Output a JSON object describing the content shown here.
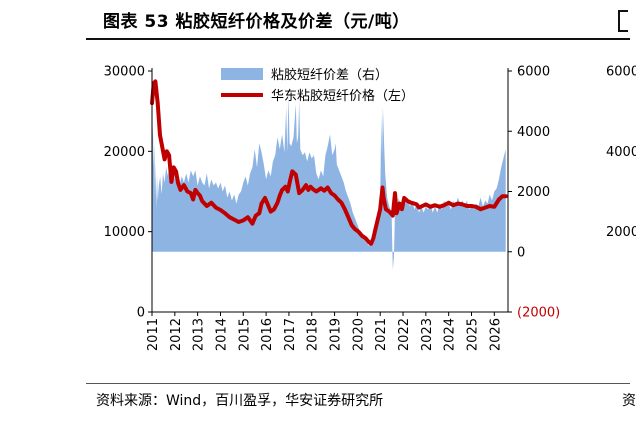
{
  "title": "图表 53 粘胶短纤价格及价差（元/吨）",
  "source": "资料来源：Wind，百川盈孚，华安证券研究所",
  "chart_data": {
    "type": "line+area",
    "colors": {
      "spread_area": "#8eb4e3",
      "price_line": "#c00000",
      "negative_tick": "#c00000"
    },
    "legend": [
      "粘胶短纤价差（右）",
      "华东粘胶短纤价格（左）"
    ],
    "legend_placement": "top-center",
    "x_ticks": [
      "2011",
      "2012",
      "2013",
      "2014",
      "2015",
      "2016",
      "2017",
      "2018",
      "2019",
      "2020",
      "2021",
      "2022",
      "2023",
      "2024",
      "2025",
      "2026"
    ],
    "xlim": [
      2011.0,
      2026.6
    ],
    "left_axis": {
      "ylim": [
        0,
        30000
      ],
      "ticks": [
        "0",
        "10000",
        "20000",
        "30000"
      ]
    },
    "right_axis": {
      "ylim": [
        -2000,
        6000
      ],
      "ticks": [
        "(2000)",
        "0",
        "2000",
        "4000",
        "6000"
      ]
    },
    "grid": false,
    "series": [
      {
        "name": "华东粘胶短纤价格（左）",
        "axis": "left",
        "style": "line",
        "points": [
          [
            2011.0,
            26000
          ],
          [
            2011.08,
            28500
          ],
          [
            2011.15,
            28700
          ],
          [
            2011.25,
            26000
          ],
          [
            2011.35,
            22000
          ],
          [
            2011.45,
            20500
          ],
          [
            2011.55,
            19000
          ],
          [
            2011.65,
            20000
          ],
          [
            2011.75,
            19500
          ],
          [
            2011.85,
            16200
          ],
          [
            2011.95,
            18000
          ],
          [
            2012.05,
            17500
          ],
          [
            2012.15,
            16000
          ],
          [
            2012.25,
            15200
          ],
          [
            2012.4,
            15800
          ],
          [
            2012.55,
            15000
          ],
          [
            2012.7,
            14800
          ],
          [
            2012.8,
            14000
          ],
          [
            2012.9,
            15200
          ],
          [
            2013.0,
            14800
          ],
          [
            2013.1,
            14500
          ],
          [
            2013.2,
            13800
          ],
          [
            2013.4,
            13200
          ],
          [
            2013.6,
            13600
          ],
          [
            2013.8,
            13000
          ],
          [
            2014.0,
            12700
          ],
          [
            2014.2,
            12300
          ],
          [
            2014.4,
            11800
          ],
          [
            2014.6,
            11500
          ],
          [
            2014.8,
            11200
          ],
          [
            2015.0,
            11400
          ],
          [
            2015.2,
            11800
          ],
          [
            2015.4,
            11000
          ],
          [
            2015.55,
            12000
          ],
          [
            2015.7,
            12300
          ],
          [
            2015.8,
            13500
          ],
          [
            2015.95,
            14200
          ],
          [
            2016.1,
            13200
          ],
          [
            2016.2,
            12500
          ],
          [
            2016.35,
            12800
          ],
          [
            2016.5,
            13600
          ],
          [
            2016.6,
            14500
          ],
          [
            2016.7,
            15200
          ],
          [
            2016.85,
            15600
          ],
          [
            2016.95,
            15000
          ],
          [
            2017.05,
            16400
          ],
          [
            2017.15,
            17500
          ],
          [
            2017.3,
            17100
          ],
          [
            2017.45,
            14800
          ],
          [
            2017.6,
            15200
          ],
          [
            2017.75,
            15800
          ],
          [
            2017.85,
            15200
          ],
          [
            2017.95,
            15600
          ],
          [
            2018.05,
            15300
          ],
          [
            2018.2,
            15000
          ],
          [
            2018.4,
            15400
          ],
          [
            2018.55,
            15100
          ],
          [
            2018.7,
            15500
          ],
          [
            2018.85,
            14800
          ],
          [
            2019.0,
            14500
          ],
          [
            2019.15,
            14000
          ],
          [
            2019.3,
            13600
          ],
          [
            2019.45,
            12800
          ],
          [
            2019.6,
            11800
          ],
          [
            2019.75,
            10800
          ],
          [
            2019.9,
            10300
          ],
          [
            2020.05,
            10000
          ],
          [
            2020.2,
            9500
          ],
          [
            2020.35,
            9200
          ],
          [
            2020.5,
            8700
          ],
          [
            2020.6,
            8500
          ],
          [
            2020.7,
            9200
          ],
          [
            2020.8,
            10400
          ],
          [
            2020.9,
            11600
          ],
          [
            2021.0,
            12800
          ],
          [
            2021.1,
            15500
          ],
          [
            2021.15,
            14200
          ],
          [
            2021.25,
            12800
          ],
          [
            2021.4,
            12500
          ],
          [
            2021.55,
            12000
          ],
          [
            2021.65,
            14800
          ],
          [
            2021.72,
            12300
          ],
          [
            2021.85,
            13500
          ],
          [
            2021.95,
            12800
          ],
          [
            2022.05,
            14200
          ],
          [
            2022.2,
            13800
          ],
          [
            2022.35,
            13600
          ],
          [
            2022.5,
            13500
          ],
          [
            2022.6,
            13400
          ],
          [
            2022.7,
            13000
          ],
          [
            2022.85,
            13200
          ],
          [
            2023.0,
            13400
          ],
          [
            2023.2,
            13100
          ],
          [
            2023.4,
            13300
          ],
          [
            2023.6,
            13100
          ],
          [
            2023.8,
            13300
          ],
          [
            2024.0,
            13600
          ],
          [
            2024.2,
            13300
          ],
          [
            2024.4,
            13500
          ],
          [
            2024.6,
            13400
          ],
          [
            2024.8,
            13200
          ],
          [
            2025.0,
            13200
          ],
          [
            2025.2,
            13100
          ],
          [
            2025.4,
            12800
          ],
          [
            2025.6,
            13000
          ],
          [
            2025.8,
            13200
          ],
          [
            2026.0,
            13100
          ],
          [
            2026.2,
            14000
          ],
          [
            2026.35,
            14400
          ],
          [
            2026.5,
            14400
          ]
        ]
      },
      {
        "name": "粘胶短纤价差（右）",
        "axis": "right",
        "style": "area",
        "points": [
          [
            2011.0,
            3200
          ],
          [
            2011.04,
            4200
          ],
          [
            2011.07,
            2800
          ],
          [
            2011.1,
            3600
          ],
          [
            2011.13,
            1800
          ],
          [
            2011.16,
            3000
          ],
          [
            2011.19,
            1400
          ],
          [
            2011.22,
            2600
          ],
          [
            2011.25,
            1700
          ],
          [
            2011.3,
            2200
          ],
          [
            2011.36,
            2500
          ],
          [
            2011.42,
            1900
          ],
          [
            2011.48,
            2600
          ],
          [
            2011.55,
            2300
          ],
          [
            2011.62,
            2800
          ],
          [
            2011.7,
            2500
          ],
          [
            2011.78,
            3100
          ],
          [
            2011.85,
            2600
          ],
          [
            2011.92,
            2900
          ],
          [
            2012.0,
            2400
          ],
          [
            2012.1,
            2600
          ],
          [
            2012.2,
            2200
          ],
          [
            2012.3,
            2500
          ],
          [
            2012.4,
            2300
          ],
          [
            2012.5,
            2600
          ],
          [
            2012.6,
            2300
          ],
          [
            2012.7,
            2700
          ],
          [
            2012.8,
            2500
          ],
          [
            2012.9,
            2700
          ],
          [
            2013.0,
            2200
          ],
          [
            2013.1,
            2500
          ],
          [
            2013.2,
            2300
          ],
          [
            2013.3,
            2200
          ],
          [
            2013.4,
            2600
          ],
          [
            2013.5,
            2100
          ],
          [
            2013.6,
            2400
          ],
          [
            2013.7,
            2200
          ],
          [
            2013.8,
            2300
          ],
          [
            2013.9,
            2100
          ],
          [
            2014.0,
            2300
          ],
          [
            2014.1,
            2000
          ],
          [
            2014.2,
            2200
          ],
          [
            2014.3,
            1800
          ],
          [
            2014.4,
            2000
          ],
          [
            2014.5,
            1700
          ],
          [
            2014.6,
            1900
          ],
          [
            2014.7,
            1600
          ],
          [
            2014.8,
            1900
          ],
          [
            2014.9,
            2000
          ],
          [
            2015.0,
            2300
          ],
          [
            2015.1,
            2500
          ],
          [
            2015.2,
            2200
          ],
          [
            2015.3,
            2600
          ],
          [
            2015.4,
            2800
          ],
          [
            2015.5,
            3400
          ],
          [
            2015.6,
            2800
          ],
          [
            2015.7,
            3600
          ],
          [
            2015.8,
            3300
          ],
          [
            2015.9,
            2900
          ],
          [
            2016.0,
            2400
          ],
          [
            2016.1,
            2700
          ],
          [
            2016.2,
            2500
          ],
          [
            2016.3,
            3000
          ],
          [
            2016.4,
            3200
          ],
          [
            2016.5,
            3800
          ],
          [
            2016.6,
            3400
          ],
          [
            2016.7,
            3900
          ],
          [
            2016.8,
            3300
          ],
          [
            2016.88,
            4800
          ],
          [
            2016.93,
            3300
          ],
          [
            2016.98,
            5200
          ],
          [
            2017.03,
            3600
          ],
          [
            2017.1,
            3500
          ],
          [
            2017.2,
            3800
          ],
          [
            2017.3,
            4900
          ],
          [
            2017.35,
            3600
          ],
          [
            2017.4,
            3800
          ],
          [
            2017.45,
            5000
          ],
          [
            2017.5,
            3400
          ],
          [
            2017.6,
            3200
          ],
          [
            2017.7,
            3300
          ],
          [
            2017.8,
            3000
          ],
          [
            2017.9,
            3300
          ],
          [
            2018.0,
            3100
          ],
          [
            2018.1,
            3200
          ],
          [
            2018.2,
            2600
          ],
          [
            2018.3,
            2400
          ],
          [
            2018.4,
            2700
          ],
          [
            2018.5,
            2500
          ],
          [
            2018.6,
            3200
          ],
          [
            2018.7,
            3500
          ],
          [
            2018.8,
            3900
          ],
          [
            2018.9,
            3200
          ],
          [
            2019.0,
            3400
          ],
          [
            2019.05,
            3600
          ],
          [
            2019.1,
            2900
          ],
          [
            2019.2,
            2700
          ],
          [
            2019.3,
            2500
          ],
          [
            2019.4,
            2300
          ],
          [
            2019.5,
            2000
          ],
          [
            2019.6,
            1800
          ],
          [
            2019.7,
            1600
          ],
          [
            2019.8,
            1300
          ],
          [
            2019.9,
            1100
          ],
          [
            2020.0,
            900
          ],
          [
            2020.1,
            700
          ],
          [
            2020.2,
            500
          ],
          [
            2020.3,
            400
          ],
          [
            2020.4,
            300
          ],
          [
            2020.5,
            200
          ],
          [
            2020.6,
            400
          ],
          [
            2020.7,
            700
          ],
          [
            2020.8,
            1000
          ],
          [
            2020.9,
            1200
          ],
          [
            2021.0,
            1800
          ],
          [
            2021.05,
            4500
          ],
          [
            2021.08,
            3200
          ],
          [
            2021.12,
            4800
          ],
          [
            2021.17,
            3600
          ],
          [
            2021.22,
            2600
          ],
          [
            2021.3,
            1800
          ],
          [
            2021.4,
            1500
          ],
          [
            2021.5,
            1300
          ],
          [
            2021.55,
            -600
          ],
          [
            2021.6,
            -200
          ],
          [
            2021.65,
            1400
          ],
          [
            2021.72,
            1200
          ],
          [
            2021.8,
            1800
          ],
          [
            2021.9,
            1500
          ],
          [
            2022.0,
            1700
          ],
          [
            2022.1,
            1600
          ],
          [
            2022.2,
            1800
          ],
          [
            2022.3,
            1500
          ],
          [
            2022.4,
            1700
          ],
          [
            2022.5,
            1400
          ],
          [
            2022.6,
            1600
          ],
          [
            2022.7,
            1300
          ],
          [
            2022.8,
            1500
          ],
          [
            2022.9,
            1300
          ],
          [
            2023.0,
            1500
          ],
          [
            2023.1,
            1400
          ],
          [
            2023.2,
            1600
          ],
          [
            2023.3,
            1300
          ],
          [
            2023.4,
            1500
          ],
          [
            2023.5,
            1300
          ],
          [
            2023.6,
            1600
          ],
          [
            2023.7,
            1400
          ],
          [
            2023.8,
            1700
          ],
          [
            2023.9,
            1500
          ],
          [
            2024.0,
            1600
          ],
          [
            2024.1,
            1400
          ],
          [
            2024.2,
            1700
          ],
          [
            2024.3,
            1500
          ],
          [
            2024.4,
            1800
          ],
          [
            2024.5,
            1600
          ],
          [
            2024.6,
            1700
          ],
          [
            2024.7,
            1500
          ],
          [
            2024.8,
            1700
          ],
          [
            2024.9,
            1400
          ],
          [
            2025.0,
            1600
          ],
          [
            2025.1,
            1400
          ],
          [
            2025.2,
            1600
          ],
          [
            2025.3,
            1500
          ],
          [
            2025.4,
            1800
          ],
          [
            2025.5,
            1500
          ],
          [
            2025.6,
            1700
          ],
          [
            2025.7,
            1600
          ],
          [
            2025.8,
            1900
          ],
          [
            2025.9,
            1700
          ],
          [
            2026.0,
            2000
          ],
          [
            2026.1,
            2100
          ],
          [
            2026.2,
            2400
          ],
          [
            2026.3,
            2800
          ],
          [
            2026.4,
            3100
          ],
          [
            2026.5,
            3400
          ]
        ]
      }
    ],
    "right_clip_ticks": [
      "6000",
      "4000",
      "2000"
    ]
  }
}
